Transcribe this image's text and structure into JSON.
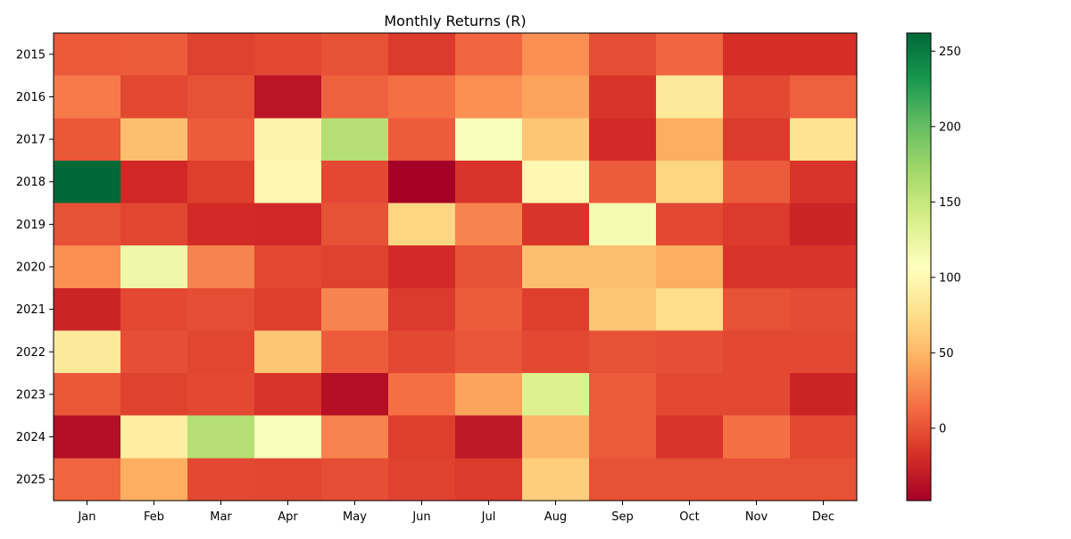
{
  "chart_data": {
    "type": "heatmap",
    "title": "Monthly Returns (R)",
    "xlabel": "",
    "ylabel": "",
    "x_categories": [
      "Jan",
      "Feb",
      "Mar",
      "Apr",
      "May",
      "Jun",
      "Jul",
      "Aug",
      "Sep",
      "Oct",
      "Nov",
      "Dec"
    ],
    "y_categories": [
      "2015",
      "2016",
      "2017",
      "2018",
      "2019",
      "2020",
      "2021",
      "2022",
      "2023",
      "2024",
      "2025"
    ],
    "values": [
      [
        4,
        5,
        -8,
        -5,
        0,
        -12,
        10,
        30,
        -2,
        10,
        -18,
        -18
      ],
      [
        20,
        -5,
        0,
        -35,
        8,
        15,
        30,
        40,
        -15,
        85,
        -5,
        8
      ],
      [
        3,
        55,
        5,
        95,
        160,
        5,
        110,
        60,
        -20,
        45,
        -12,
        80
      ],
      [
        262,
        -22,
        -10,
        100,
        -5,
        -48,
        -15,
        100,
        5,
        70,
        5,
        -15
      ],
      [
        0,
        -6,
        -20,
        -22,
        0,
        70,
        25,
        -15,
        115,
        -5,
        -12,
        -25
      ],
      [
        30,
        120,
        25,
        -5,
        -8,
        -20,
        0,
        55,
        55,
        45,
        -15,
        -15
      ],
      [
        -25,
        -5,
        -2,
        -10,
        25,
        -12,
        5,
        -10,
        60,
        75,
        0,
        -3
      ],
      [
        85,
        -1,
        -6,
        60,
        5,
        -5,
        2,
        -5,
        0,
        -1,
        -5,
        -5
      ],
      [
        3,
        -8,
        -5,
        -15,
        -38,
        15,
        40,
        135,
        5,
        -5,
        -5,
        -25
      ],
      [
        -38,
        90,
        160,
        110,
        25,
        -10,
        -32,
        50,
        5,
        -15,
        15,
        -5
      ],
      [
        10,
        45,
        -5,
        -6,
        -2,
        -8,
        -12,
        65,
        0,
        0,
        0,
        0
      ]
    ],
    "colormap": "RdYlGn",
    "color_range": [
      -48,
      262
    ],
    "colorbar_ticks": [
      0,
      50,
      100,
      150,
      200,
      250
    ],
    "grid": false,
    "legend": "colorbar-right"
  }
}
